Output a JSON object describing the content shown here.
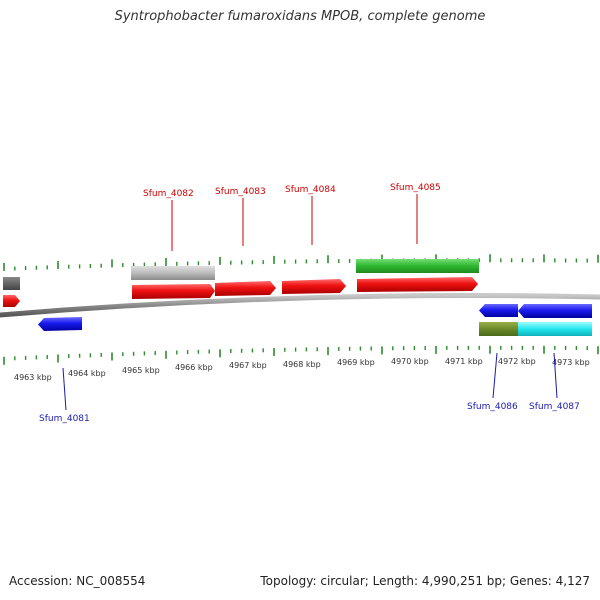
{
  "title": "Syntrophobacter fumaroxidans MPOB, complete genome",
  "footer": {
    "accession": "Accession: NC_008554",
    "stats": "Topology: circular; Length: 4,990,251 bp; Genes: 4,127"
  },
  "colors": {
    "tick": "#2e8b2e",
    "backbone": "#8c8c8c",
    "forward_gene": "#ee1111",
    "reverse_gene": "#1a1aee",
    "rna": "#33bb33",
    "pseudo": "#bbbbbb",
    "label_forward": "#cc0000",
    "label_reverse": "#1a1aaa"
  },
  "kbp_ticks": [
    "4963 kbp",
    "4964 kbp",
    "4965 kbp",
    "4966 kbp",
    "4967 kbp",
    "4968 kbp",
    "4969 kbp",
    "4970 kbp",
    "4971 kbp",
    "4972 kbp",
    "4973 kbp"
  ],
  "gene_labels": {
    "top": [
      "Sfum_4082",
      "Sfum_4083",
      "Sfum_4084",
      "Sfum_4085"
    ],
    "bottom": [
      "Sfum_4081",
      "Sfum_4086",
      "Sfum_4087"
    ]
  }
}
